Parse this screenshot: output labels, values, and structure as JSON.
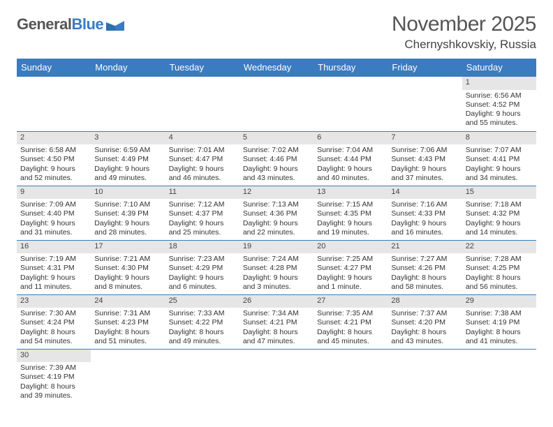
{
  "logo": {
    "text_left": "General",
    "text_right": "Blue"
  },
  "title": "November 2025",
  "location": "Chernyshkovskiy, Russia",
  "colors": {
    "header_bar": "#3b7bbf",
    "daynum_bg": "#e6e6e6",
    "row_divider": "#3b7bbf",
    "text": "#333333",
    "title_text": "#555555"
  },
  "fonts": {
    "family": "Arial",
    "title_size_pt": 22,
    "header_size_pt": 10,
    "cell_size_pt": 8
  },
  "day_headers": [
    "Sunday",
    "Monday",
    "Tuesday",
    "Wednesday",
    "Thursday",
    "Friday",
    "Saturday"
  ],
  "weeks": [
    [
      {
        "blank": true
      },
      {
        "blank": true
      },
      {
        "blank": true
      },
      {
        "blank": true
      },
      {
        "blank": true
      },
      {
        "blank": true
      },
      {
        "n": "1",
        "sunrise": "Sunrise: 6:56 AM",
        "sunset": "Sunset: 4:52 PM",
        "daylight": "Daylight: 9 hours and 55 minutes."
      }
    ],
    [
      {
        "n": "2",
        "sunrise": "Sunrise: 6:58 AM",
        "sunset": "Sunset: 4:50 PM",
        "daylight": "Daylight: 9 hours and 52 minutes."
      },
      {
        "n": "3",
        "sunrise": "Sunrise: 6:59 AM",
        "sunset": "Sunset: 4:49 PM",
        "daylight": "Daylight: 9 hours and 49 minutes."
      },
      {
        "n": "4",
        "sunrise": "Sunrise: 7:01 AM",
        "sunset": "Sunset: 4:47 PM",
        "daylight": "Daylight: 9 hours and 46 minutes."
      },
      {
        "n": "5",
        "sunrise": "Sunrise: 7:02 AM",
        "sunset": "Sunset: 4:46 PM",
        "daylight": "Daylight: 9 hours and 43 minutes."
      },
      {
        "n": "6",
        "sunrise": "Sunrise: 7:04 AM",
        "sunset": "Sunset: 4:44 PM",
        "daylight": "Daylight: 9 hours and 40 minutes."
      },
      {
        "n": "7",
        "sunrise": "Sunrise: 7:06 AM",
        "sunset": "Sunset: 4:43 PM",
        "daylight": "Daylight: 9 hours and 37 minutes."
      },
      {
        "n": "8",
        "sunrise": "Sunrise: 7:07 AM",
        "sunset": "Sunset: 4:41 PM",
        "daylight": "Daylight: 9 hours and 34 minutes."
      }
    ],
    [
      {
        "n": "9",
        "sunrise": "Sunrise: 7:09 AM",
        "sunset": "Sunset: 4:40 PM",
        "daylight": "Daylight: 9 hours and 31 minutes."
      },
      {
        "n": "10",
        "sunrise": "Sunrise: 7:10 AM",
        "sunset": "Sunset: 4:39 PM",
        "daylight": "Daylight: 9 hours and 28 minutes."
      },
      {
        "n": "11",
        "sunrise": "Sunrise: 7:12 AM",
        "sunset": "Sunset: 4:37 PM",
        "daylight": "Daylight: 9 hours and 25 minutes."
      },
      {
        "n": "12",
        "sunrise": "Sunrise: 7:13 AM",
        "sunset": "Sunset: 4:36 PM",
        "daylight": "Daylight: 9 hours and 22 minutes."
      },
      {
        "n": "13",
        "sunrise": "Sunrise: 7:15 AM",
        "sunset": "Sunset: 4:35 PM",
        "daylight": "Daylight: 9 hours and 19 minutes."
      },
      {
        "n": "14",
        "sunrise": "Sunrise: 7:16 AM",
        "sunset": "Sunset: 4:33 PM",
        "daylight": "Daylight: 9 hours and 16 minutes."
      },
      {
        "n": "15",
        "sunrise": "Sunrise: 7:18 AM",
        "sunset": "Sunset: 4:32 PM",
        "daylight": "Daylight: 9 hours and 14 minutes."
      }
    ],
    [
      {
        "n": "16",
        "sunrise": "Sunrise: 7:19 AM",
        "sunset": "Sunset: 4:31 PM",
        "daylight": "Daylight: 9 hours and 11 minutes."
      },
      {
        "n": "17",
        "sunrise": "Sunrise: 7:21 AM",
        "sunset": "Sunset: 4:30 PM",
        "daylight": "Daylight: 9 hours and 8 minutes."
      },
      {
        "n": "18",
        "sunrise": "Sunrise: 7:23 AM",
        "sunset": "Sunset: 4:29 PM",
        "daylight": "Daylight: 9 hours and 6 minutes."
      },
      {
        "n": "19",
        "sunrise": "Sunrise: 7:24 AM",
        "sunset": "Sunset: 4:28 PM",
        "daylight": "Daylight: 9 hours and 3 minutes."
      },
      {
        "n": "20",
        "sunrise": "Sunrise: 7:25 AM",
        "sunset": "Sunset: 4:27 PM",
        "daylight": "Daylight: 9 hours and 1 minute."
      },
      {
        "n": "21",
        "sunrise": "Sunrise: 7:27 AM",
        "sunset": "Sunset: 4:26 PM",
        "daylight": "Daylight: 8 hours and 58 minutes."
      },
      {
        "n": "22",
        "sunrise": "Sunrise: 7:28 AM",
        "sunset": "Sunset: 4:25 PM",
        "daylight": "Daylight: 8 hours and 56 minutes."
      }
    ],
    [
      {
        "n": "23",
        "sunrise": "Sunrise: 7:30 AM",
        "sunset": "Sunset: 4:24 PM",
        "daylight": "Daylight: 8 hours and 54 minutes."
      },
      {
        "n": "24",
        "sunrise": "Sunrise: 7:31 AM",
        "sunset": "Sunset: 4:23 PM",
        "daylight": "Daylight: 8 hours and 51 minutes."
      },
      {
        "n": "25",
        "sunrise": "Sunrise: 7:33 AM",
        "sunset": "Sunset: 4:22 PM",
        "daylight": "Daylight: 8 hours and 49 minutes."
      },
      {
        "n": "26",
        "sunrise": "Sunrise: 7:34 AM",
        "sunset": "Sunset: 4:21 PM",
        "daylight": "Daylight: 8 hours and 47 minutes."
      },
      {
        "n": "27",
        "sunrise": "Sunrise: 7:35 AM",
        "sunset": "Sunset: 4:21 PM",
        "daylight": "Daylight: 8 hours and 45 minutes."
      },
      {
        "n": "28",
        "sunrise": "Sunrise: 7:37 AM",
        "sunset": "Sunset: 4:20 PM",
        "daylight": "Daylight: 8 hours and 43 minutes."
      },
      {
        "n": "29",
        "sunrise": "Sunrise: 7:38 AM",
        "sunset": "Sunset: 4:19 PM",
        "daylight": "Daylight: 8 hours and 41 minutes."
      }
    ],
    [
      {
        "n": "30",
        "sunrise": "Sunrise: 7:39 AM",
        "sunset": "Sunset: 4:19 PM",
        "daylight": "Daylight: 8 hours and 39 minutes."
      },
      {
        "blank": true
      },
      {
        "blank": true
      },
      {
        "blank": true
      },
      {
        "blank": true
      },
      {
        "blank": true
      },
      {
        "blank": true
      }
    ]
  ]
}
